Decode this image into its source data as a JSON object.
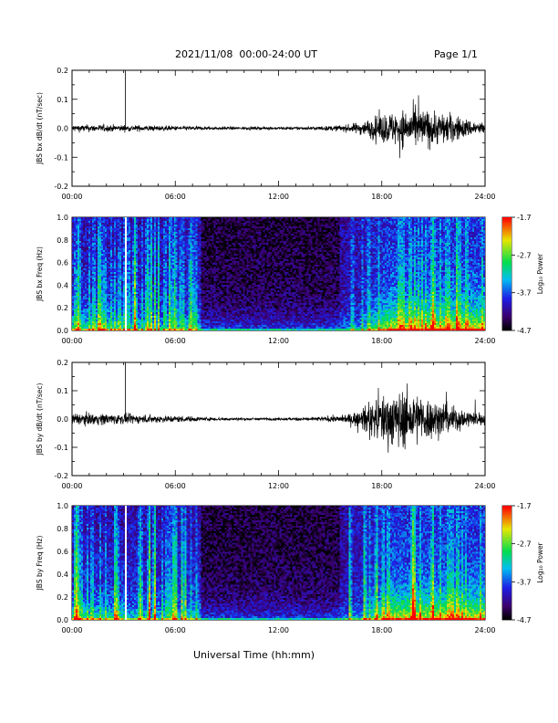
{
  "header": {
    "date_range": "2021/11/08  00:00-24:00 UT",
    "page": "Page 1/1"
  },
  "xlabel": "Universal Time (hh:mm)",
  "chart_data": [
    {
      "type": "line",
      "ylabel": "JBS bx dB/dt (nT/sec)",
      "ylim": [
        -0.2,
        0.2
      ],
      "yticks": [
        "0.2",
        "0.1",
        "0.0",
        "-0.1",
        "-0.2"
      ],
      "xticks": [
        "00:00",
        "06:00",
        "12:00",
        "18:00",
        "24:00"
      ],
      "xlim_hours": [
        0,
        24
      ],
      "spike_hour": 3.1,
      "spike_value": 0.2,
      "envelope_hours": [
        0,
        2,
        4,
        6,
        8,
        10,
        12,
        14,
        15,
        16,
        17,
        18,
        19,
        20,
        21,
        22,
        23,
        24
      ],
      "envelope_amp": [
        0.012,
        0.012,
        0.01,
        0.008,
        0.006,
        0.005,
        0.005,
        0.006,
        0.008,
        0.012,
        0.025,
        0.05,
        0.06,
        0.07,
        0.06,
        0.05,
        0.03,
        0.02
      ]
    },
    {
      "type": "heatmap",
      "ylabel": "JBS bx Freq (Hz)",
      "ylim": [
        0.0,
        1.0
      ],
      "yticks": [
        "1.0",
        "0.8",
        "0.6",
        "0.4",
        "0.2",
        "0.0"
      ],
      "xticks": [
        "00:00",
        "06:00",
        "12:00",
        "18:00",
        "24:00"
      ],
      "colorbar_label": "Log₁₀ Power",
      "colorbar_ticks": [
        "-1.7",
        "-2.7",
        "-3.7",
        "-4.7"
      ],
      "crange": [
        -4.7,
        -1.7
      ]
    },
    {
      "type": "line",
      "ylabel": "JBS by dB/dt (nT/sec)",
      "ylim": [
        -0.2,
        0.2
      ],
      "yticks": [
        "0.2",
        "0.1",
        "0.0",
        "-0.1",
        "-0.2"
      ],
      "xticks": [
        "00:00",
        "06:00",
        "12:00",
        "18:00",
        "24:00"
      ],
      "xlim_hours": [
        0,
        24
      ],
      "spike_hour": 3.1,
      "spike_value": 0.2,
      "envelope_hours": [
        0,
        2,
        4,
        6,
        8,
        10,
        12,
        14,
        15,
        16,
        17,
        18,
        19,
        20,
        21,
        22,
        23,
        24
      ],
      "envelope_amp": [
        0.02,
        0.02,
        0.015,
        0.012,
        0.006,
        0.005,
        0.005,
        0.007,
        0.01,
        0.015,
        0.04,
        0.09,
        0.1,
        0.09,
        0.07,
        0.05,
        0.03,
        0.02
      ]
    },
    {
      "type": "heatmap",
      "ylabel": "JBS by Freq (Hz)",
      "ylim": [
        0.0,
        1.0
      ],
      "yticks": [
        "1.0",
        "0.8",
        "0.6",
        "0.4",
        "0.2",
        "0.0"
      ],
      "xticks": [
        "00:00",
        "06:00",
        "12:00",
        "18:00",
        "24:00"
      ],
      "colorbar_label": "Log₁₀ Power",
      "colorbar_ticks": [
        "-1.7",
        "-2.7",
        "-3.7",
        "-4.7"
      ],
      "crange": [
        -4.7,
        -1.7
      ]
    }
  ]
}
